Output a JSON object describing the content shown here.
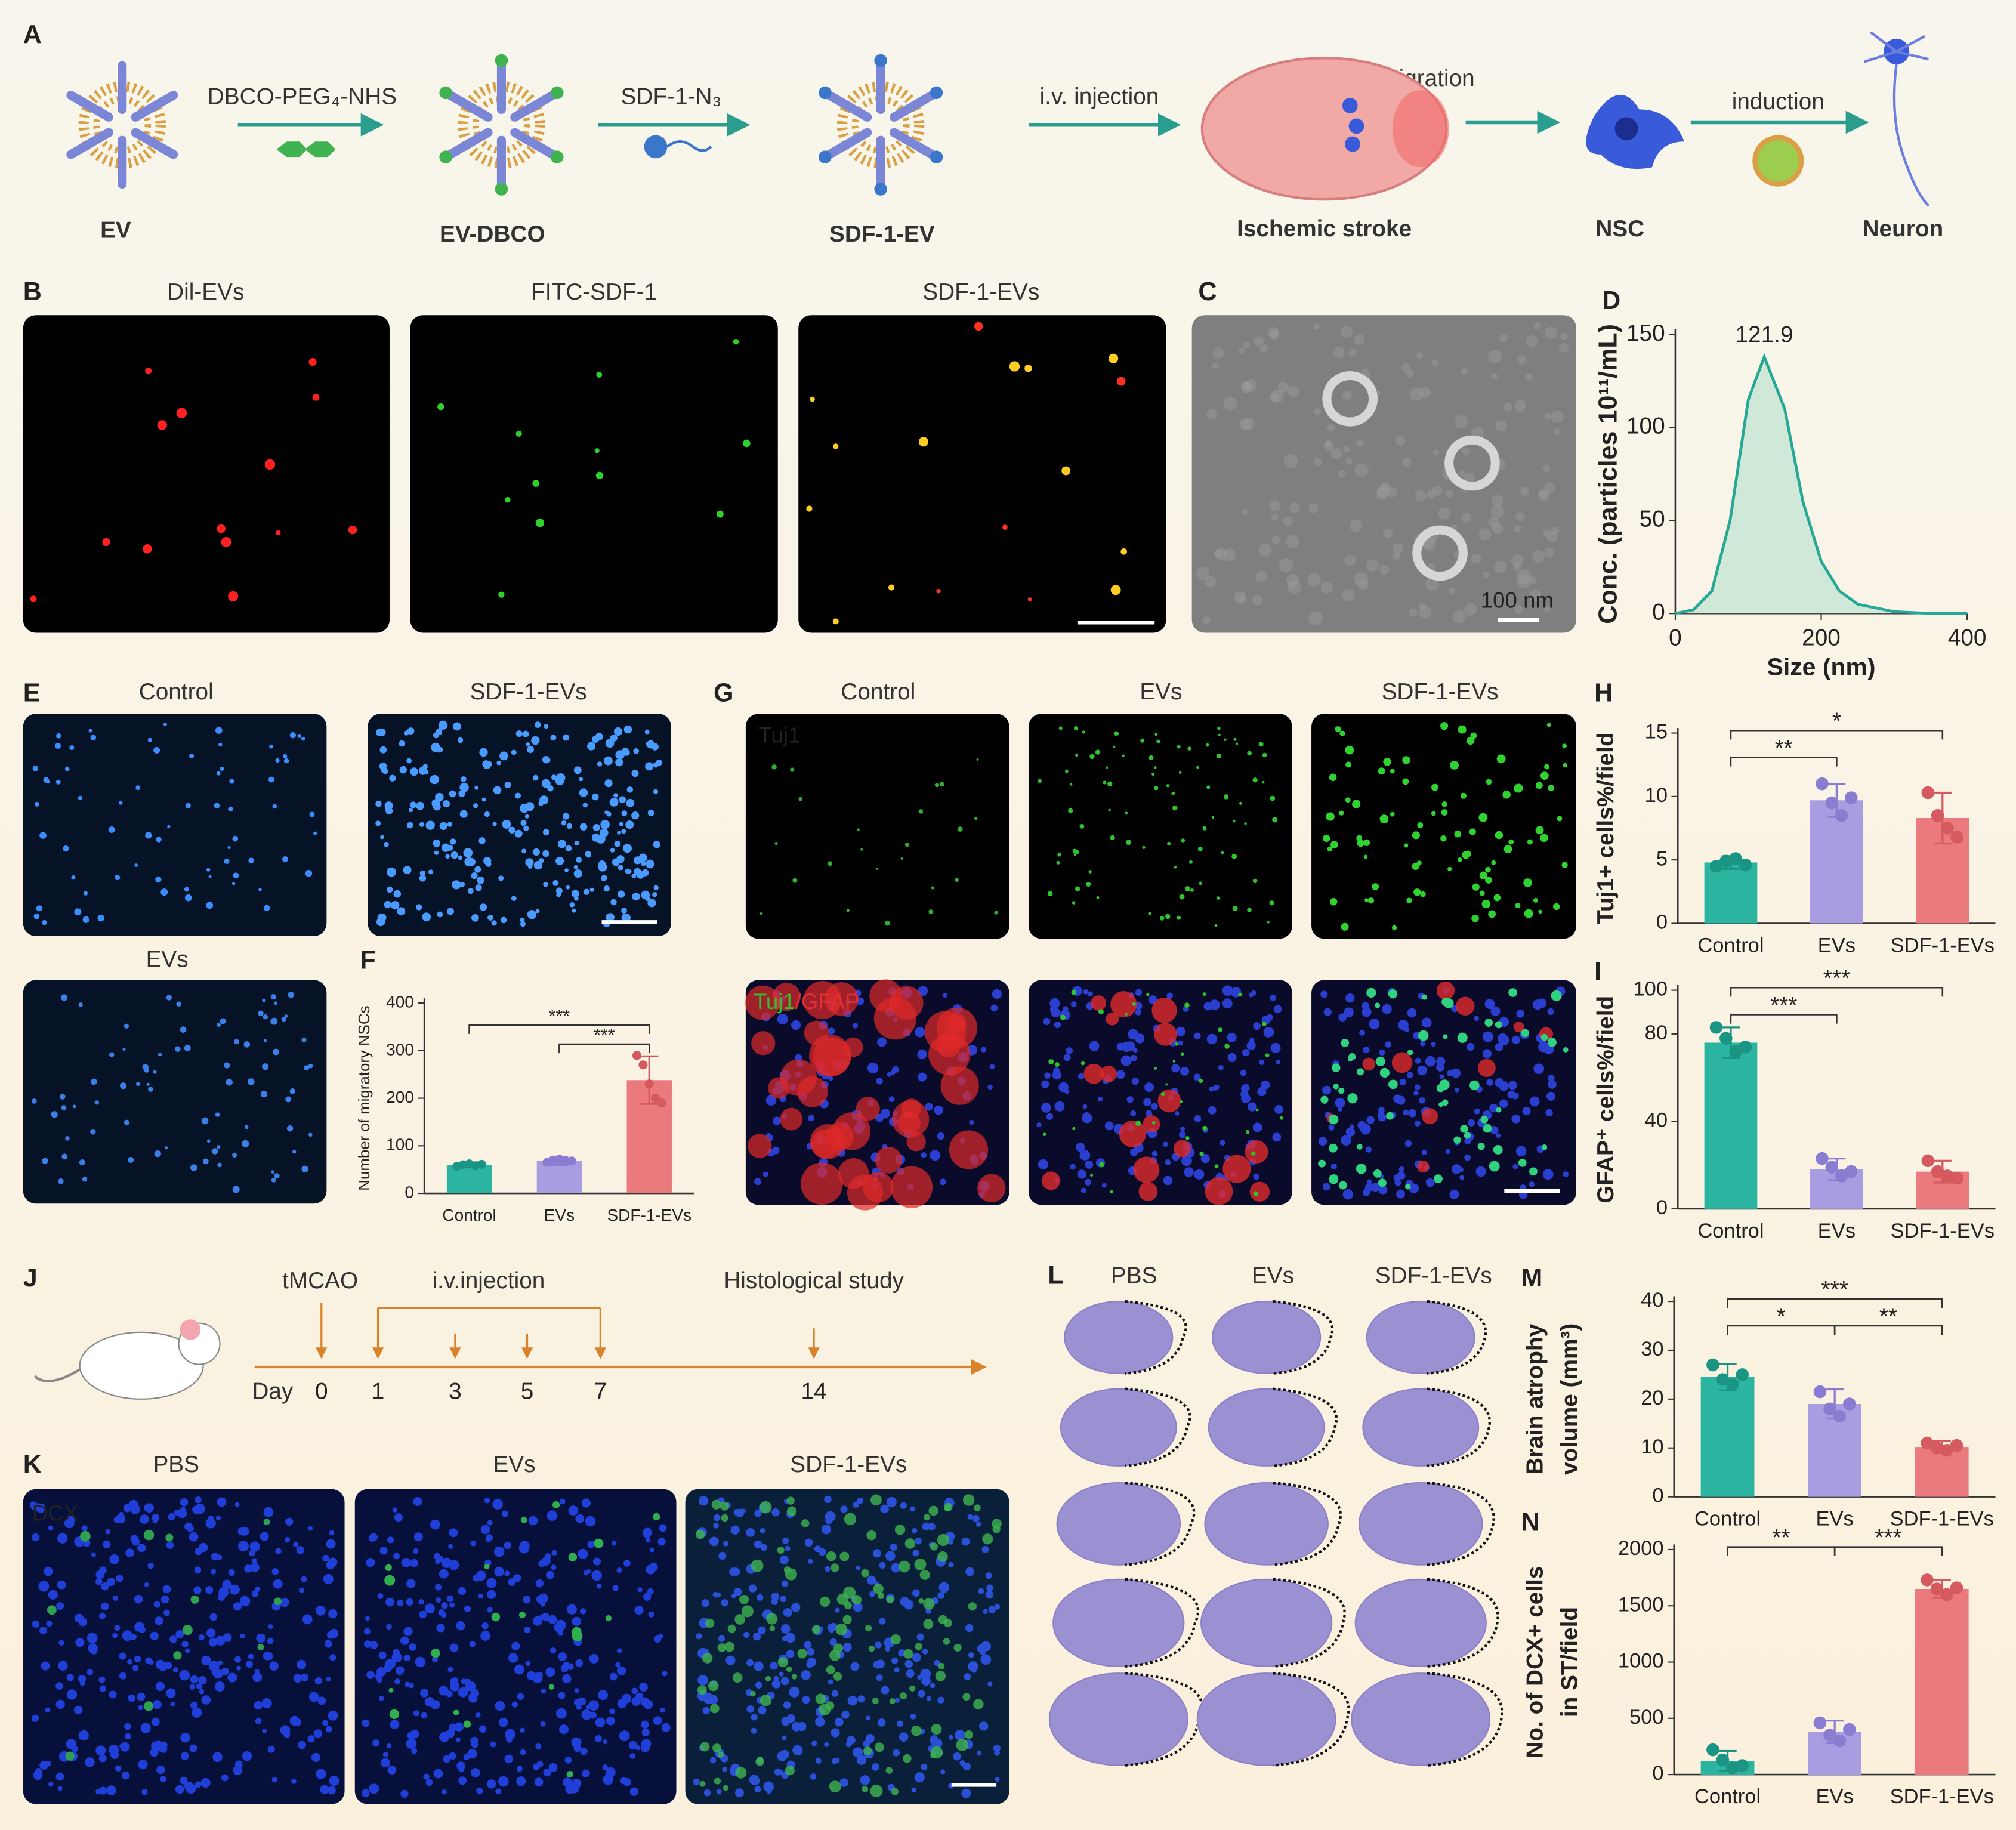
{
  "panel_labels": [
    "A",
    "B",
    "C",
    "D",
    "E",
    "F",
    "G",
    "H",
    "I",
    "J",
    "K",
    "L",
    "M",
    "N"
  ],
  "schematic": {
    "steps": [
      "EV",
      "EV-DBCO",
      "SDF-1-EV",
      "Ischemic stroke",
      "NSC",
      "Neuron"
    ],
    "reagents": [
      "DBCO-PEG₄-NHS",
      "SDF-1-N₃",
      "i.v. injection",
      "induction"
    ],
    "migration": "Migration"
  },
  "panel_B": {
    "titles": [
      "Dil-EVs",
      "FITC-SDF-1",
      "SDF-1-EVs"
    ]
  },
  "panel_C": {
    "scale_bar": "100 nm"
  },
  "panel_E": {
    "titles": [
      "Control",
      "SDF-1-EVs",
      "EVs"
    ]
  },
  "panel_G": {
    "titles": [
      "Control",
      "EVs",
      "SDF-1-EVs"
    ],
    "stain_top": "Tuj1",
    "stain_bottom": [
      "Tuj1",
      "/GFAP"
    ]
  },
  "panel_J": {
    "events": [
      "tMCAO",
      "i.v.injection",
      "Histological study"
    ],
    "day_label": "Day",
    "days": [
      0,
      1,
      3,
      5,
      7,
      14
    ]
  },
  "panel_K": {
    "titles": [
      "PBS",
      "EVs",
      "SDF-1-EVs"
    ],
    "stain": "DCX"
  },
  "panel_L": {
    "titles": [
      "PBS",
      "EVs",
      "SDF-1-EVs"
    ]
  },
  "chart_data": [
    {
      "type": "line",
      "xlabel": "Size (nm)",
      "ylabel": [
        "Conc. (particles 10¹¹/mL)"
      ],
      "x": [
        0,
        25,
        50,
        75,
        100,
        121.9,
        150,
        175,
        200,
        225,
        250,
        300,
        350,
        400
      ],
      "values": [
        0,
        2,
        12,
        50,
        115,
        138,
        110,
        60,
        28,
        12,
        5,
        1,
        0,
        0
      ],
      "color": "#27a897",
      "fill": "#cfe8d8",
      "xlim": [
        0,
        400
      ],
      "xticks": [
        0,
        200,
        400
      ],
      "ylim": [
        0,
        150
      ],
      "yticks": [
        0,
        50,
        100,
        150
      ],
      "annotations": [
        {
          "x": 121.9,
          "label": "121.9"
        }
      ]
    },
    {
      "type": "bar",
      "ylabel": [
        "Number of migratory NSCs"
      ],
      "categories": [
        "Control",
        "EVs",
        "SDF-1-EVs"
      ],
      "values": [
        60,
        68,
        238
      ],
      "errors": [
        5,
        8,
        50
      ],
      "points": [
        [
          57,
          60,
          62,
          58,
          61
        ],
        [
          65,
          70,
          72,
          66,
          68
        ],
        [
          290,
          270,
          230,
          200,
          190
        ]
      ],
      "colors": [
        "#2bb5a0",
        "#a99de2",
        "#ea7a7d"
      ],
      "point_colors": [
        "#1b9583",
        "#8a7cd0",
        "#d45a60"
      ],
      "ylim": [
        0,
        400
      ],
      "yticks": [
        0,
        100,
        200,
        300,
        400
      ],
      "annotations": [
        {
          "label": "***",
          "between": [
            "Control",
            "SDF-1-EVs"
          ]
        },
        {
          "label": "***",
          "between": [
            "EVs",
            "SDF-1-EVs"
          ]
        }
      ]
    },
    {
      "type": "bar",
      "ylabel": [
        "Tuj1+ cells%/field"
      ],
      "categories": [
        "Control",
        "EVs",
        "SDF-1-EVs"
      ],
      "values": [
        4.8,
        9.7,
        8.3
      ],
      "errors": [
        0.5,
        1.3,
        2.0
      ],
      "points": [
        [
          4.5,
          4.9,
          5.1,
          4.6
        ],
        [
          11.0,
          9.5,
          8.5,
          9.9
        ],
        [
          10.3,
          8.5,
          7.5,
          6.8
        ]
      ],
      "colors": [
        "#2bb5a0",
        "#a99de2",
        "#ea7a7d"
      ],
      "point_colors": [
        "#1b9583",
        "#8a7cd0",
        "#d45a60"
      ],
      "ylim": [
        0,
        15
      ],
      "yticks": [
        0,
        5,
        10,
        15
      ],
      "annotations": [
        {
          "label": "*",
          "between": [
            "Control",
            "SDF-1-EVs"
          ]
        },
        {
          "label": "**",
          "between": [
            "Control",
            "EVs"
          ]
        }
      ]
    },
    {
      "type": "bar",
      "ylabel": [
        "GFAP⁺ cells%/field"
      ],
      "categories": [
        "Control",
        "EVs",
        "SDF-1-EVs"
      ],
      "values": [
        76,
        18,
        17
      ],
      "errors": [
        7,
        5,
        5
      ],
      "points": [
        [
          83,
          78,
          72,
          74
        ],
        [
          23,
          19,
          15,
          17
        ],
        [
          22,
          17,
          15,
          14
        ]
      ],
      "colors": [
        "#2bb5a0",
        "#a99de2",
        "#ea7a7d"
      ],
      "point_colors": [
        "#1b9583",
        "#8a7cd0",
        "#d45a60"
      ],
      "ylim": [
        0,
        100
      ],
      "yticks": [
        0,
        40,
        80,
        100
      ],
      "annotations": [
        {
          "label": "***",
          "between": [
            "Control",
            "SDF-1-EVs"
          ]
        },
        {
          "label": "***",
          "between": [
            "Control",
            "EVs"
          ]
        }
      ]
    },
    {
      "type": "bar",
      "ylabel": [
        "Brain atrophy",
        "volume (mm³)"
      ],
      "categories": [
        "Control",
        "EVs",
        "SDF-1-EVs"
      ],
      "values": [
        24.5,
        19,
        10.2
      ],
      "errors": [
        2.7,
        3,
        1.2
      ],
      "points": [
        [
          27,
          24,
          23,
          25
        ],
        [
          21.5,
          18,
          16.5,
          19
        ],
        [
          11,
          10,
          9.5,
          10.5
        ]
      ],
      "colors": [
        "#2bb5a0",
        "#a99de2",
        "#ea7a7d"
      ],
      "point_colors": [
        "#1b9583",
        "#8a7cd0",
        "#d45a60"
      ],
      "ylim": [
        0,
        40
      ],
      "yticks": [
        0,
        10,
        20,
        30,
        40
      ],
      "annotations": [
        {
          "label": "***",
          "between": [
            "Control",
            "SDF-1-EVs"
          ]
        },
        {
          "label": "*",
          "between": [
            "Control",
            "EVs"
          ]
        },
        {
          "label": "**",
          "between": [
            "EVs",
            "SDF-1-EVs"
          ]
        }
      ]
    },
    {
      "type": "bar",
      "ylabel": [
        "No. of DCX+ cells",
        "in ST/field"
      ],
      "categories": [
        "Control",
        "EVs",
        "SDF-1-EVs"
      ],
      "values": [
        120,
        380,
        1650
      ],
      "errors": [
        90,
        100,
        80
      ],
      "points": [
        [
          220,
          130,
          60,
          80
        ],
        [
          460,
          350,
          300,
          400
        ],
        [
          1730,
          1650,
          1600,
          1660
        ]
      ],
      "colors": [
        "#2bb5a0",
        "#a99de2",
        "#ea7a7d"
      ],
      "point_colors": [
        "#1b9583",
        "#8a7cd0",
        "#d45a60"
      ],
      "ylim": [
        0,
        2000
      ],
      "yticks": [
        0,
        500,
        1000,
        1500,
        2000
      ],
      "annotations": [
        {
          "label": "**",
          "between": [
            "Control",
            "EVs"
          ]
        },
        {
          "label": "***",
          "between": [
            "EVs",
            "SDF-1-EVs"
          ]
        }
      ]
    }
  ]
}
